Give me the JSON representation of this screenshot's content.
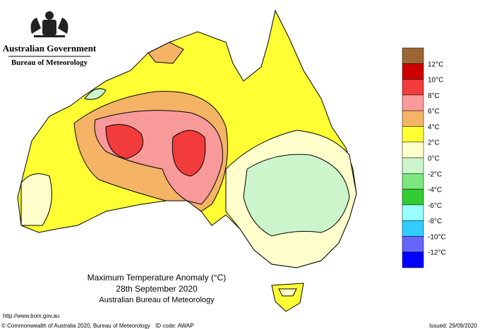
{
  "header": {
    "title": "Australian Government",
    "subtitle": "Bureau of Meteorology"
  },
  "map": {
    "title": "Maximum Temperature Anomaly (°C)",
    "date": "28th September 2020",
    "source": "Australian Bureau of Meteorology"
  },
  "legend": {
    "labels": [
      "12°C",
      "10°C",
      "8°C",
      "6°C",
      "4°C",
      "2°C",
      "0°C",
      "-2°C",
      "-4°C",
      "-6°C",
      "-8°C",
      "-10°C",
      "-12°C"
    ],
    "colors": [
      "#9a6634",
      "#cc0000",
      "#f23b3b",
      "#f99a9a",
      "#f5b366",
      "#ffff33",
      "#ffffcc",
      "#ccf5cc",
      "#7ee67e",
      "#33cc33",
      "#99ffff",
      "#33ccff",
      "#6666ff",
      "#0000ff"
    ]
  },
  "footer": {
    "url": "http://www.bom.gov.au",
    "copyright": "© Commonwealth of Australia 2020, Bureau of Meteorology",
    "id_code": "ID code: AWAP",
    "issued": "Issued: 29/09/2020"
  }
}
